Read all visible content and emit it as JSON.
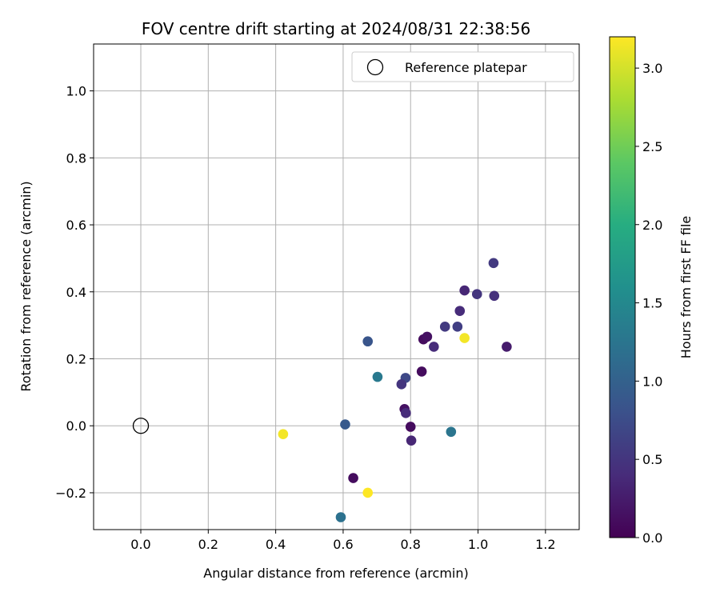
{
  "chart_data": {
    "type": "scatter",
    "title": "FOV centre drift starting at 2024/08/31 22:38:56",
    "xlabel": "Angular distance from reference (arcmin)",
    "ylabel": "Rotation from reference (arcmin)",
    "xlim": [
      -0.14,
      1.3
    ],
    "ylim": [
      -0.31,
      1.14
    ],
    "xticks": [
      0.0,
      0.2,
      0.4,
      0.6,
      0.8,
      1.0,
      1.2
    ],
    "yticks": [
      -0.2,
      0.0,
      0.2,
      0.4,
      0.6,
      0.8,
      1.0
    ],
    "xtick_labels": [
      "0.0",
      "0.2",
      "0.4",
      "0.6",
      "0.8",
      "1.0",
      "1.2"
    ],
    "ytick_labels": [
      "−0.2",
      "0.0",
      "0.2",
      "0.4",
      "0.6",
      "0.8",
      "1.0"
    ],
    "grid": true,
    "legend": {
      "placement": "top-right",
      "label": "Reference platepar"
    },
    "reference_point": {
      "x": 0.0,
      "y": 0.0
    },
    "colorbar": {
      "label": "Hours from first FF file",
      "range": [
        0.0,
        3.2
      ],
      "ticks": [
        0.0,
        0.5,
        1.0,
        1.5,
        2.0,
        2.5,
        3.0
      ],
      "tick_labels": [
        "0.0",
        "0.5",
        "1.0",
        "1.5",
        "2.0",
        "2.5",
        "3.0"
      ],
      "colormap": "viridis"
    },
    "points": [
      {
        "x": 1.046,
        "y": 0.486,
        "hours": 0.55
      },
      {
        "x": 0.96,
        "y": 0.404,
        "hours": 0.35
      },
      {
        "x": 0.997,
        "y": 0.393,
        "hours": 0.5
      },
      {
        "x": 1.048,
        "y": 0.388,
        "hours": 0.45
      },
      {
        "x": 0.946,
        "y": 0.343,
        "hours": 0.4
      },
      {
        "x": 0.902,
        "y": 0.296,
        "hours": 0.55
      },
      {
        "x": 0.939,
        "y": 0.296,
        "hours": 0.6
      },
      {
        "x": 0.838,
        "y": 0.258,
        "hours": 0.1
      },
      {
        "x": 0.849,
        "y": 0.266,
        "hours": 0.15
      },
      {
        "x": 0.96,
        "y": 0.262,
        "hours": 3.15
      },
      {
        "x": 0.869,
        "y": 0.236,
        "hours": 0.4
      },
      {
        "x": 1.085,
        "y": 0.236,
        "hours": 0.25
      },
      {
        "x": 0.673,
        "y": 0.252,
        "hours": 0.85
      },
      {
        "x": 0.833,
        "y": 0.162,
        "hours": 0.1
      },
      {
        "x": 0.702,
        "y": 0.146,
        "hours": 1.3
      },
      {
        "x": 0.785,
        "y": 0.143,
        "hours": 0.7
      },
      {
        "x": 0.773,
        "y": 0.124,
        "hours": 0.5
      },
      {
        "x": 0.782,
        "y": 0.05,
        "hours": 0.15
      },
      {
        "x": 0.786,
        "y": 0.038,
        "hours": 0.4
      },
      {
        "x": 0.606,
        "y": 0.004,
        "hours": 0.9
      },
      {
        "x": 0.8,
        "y": -0.003,
        "hours": 0.1
      },
      {
        "x": 0.802,
        "y": -0.044,
        "hours": 0.35
      },
      {
        "x": 0.92,
        "y": -0.018,
        "hours": 1.25
      },
      {
        "x": 0.422,
        "y": -0.025,
        "hours": 3.15
      },
      {
        "x": 0.63,
        "y": -0.156,
        "hours": 0.1
      },
      {
        "x": 0.673,
        "y": -0.2,
        "hours": 3.2
      },
      {
        "x": 0.593,
        "y": -0.273,
        "hours": 1.2
      }
    ]
  }
}
